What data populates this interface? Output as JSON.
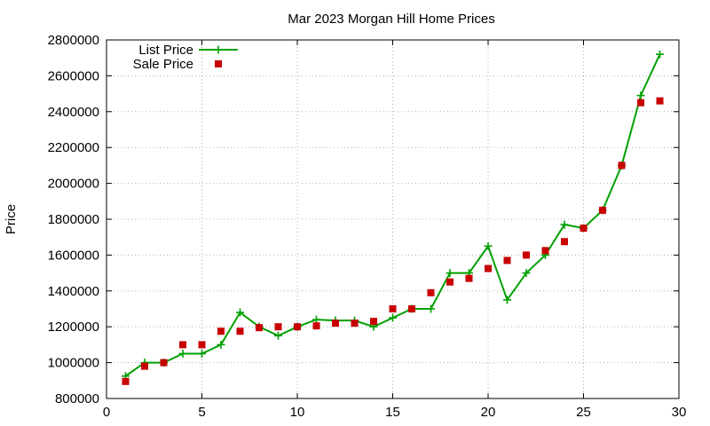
{
  "chart_data": {
    "type": "line",
    "title": "Mar 2023 Morgan Hill Home Prices",
    "xlabel": "",
    "ylabel": "Price",
    "xlim": [
      0,
      30
    ],
    "ylim": [
      800000,
      2800000
    ],
    "xticks": [
      0,
      5,
      10,
      15,
      20,
      25,
      30
    ],
    "yticks": [
      800000,
      1000000,
      1200000,
      1400000,
      1600000,
      1800000,
      2000000,
      2200000,
      2400000,
      2600000,
      2800000
    ],
    "grid": true,
    "legend_position": "top-left",
    "series": [
      {
        "name": "List Price",
        "style": "line-with-plus-markers",
        "color": "#00a000",
        "x": [
          1,
          2,
          3,
          4,
          5,
          6,
          7,
          8,
          9,
          10,
          11,
          12,
          13,
          14,
          15,
          16,
          17,
          18,
          19,
          20,
          21,
          22,
          23,
          24,
          25,
          26,
          27,
          28,
          29
        ],
        "values": [
          925000,
          1000000,
          1000000,
          1050000,
          1050000,
          1100000,
          1280000,
          1200000,
          1150000,
          1200000,
          1240000,
          1235000,
          1235000,
          1200000,
          1250000,
          1300000,
          1300000,
          1500000,
          1500000,
          1650000,
          1350000,
          1500000,
          1600000,
          1770000,
          1750000,
          1850000,
          2100000,
          2490000,
          2720000
        ]
      },
      {
        "name": "Sale Price",
        "style": "square-markers",
        "color": "#c80000",
        "x": [
          1,
          2,
          3,
          4,
          5,
          6,
          7,
          8,
          9,
          10,
          11,
          12,
          13,
          14,
          15,
          16,
          17,
          18,
          19,
          20,
          21,
          22,
          23,
          24,
          25,
          26,
          27,
          28,
          29
        ],
        "values": [
          895000,
          980000,
          1000000,
          1100000,
          1100000,
          1175000,
          1175000,
          1195000,
          1200000,
          1200000,
          1205000,
          1220000,
          1220000,
          1230000,
          1300000,
          1300000,
          1390000,
          1450000,
          1470000,
          1525000,
          1570000,
          1600000,
          1625000,
          1675000,
          1750000,
          1850000,
          2100000,
          2450000,
          2460000
        ]
      }
    ]
  }
}
